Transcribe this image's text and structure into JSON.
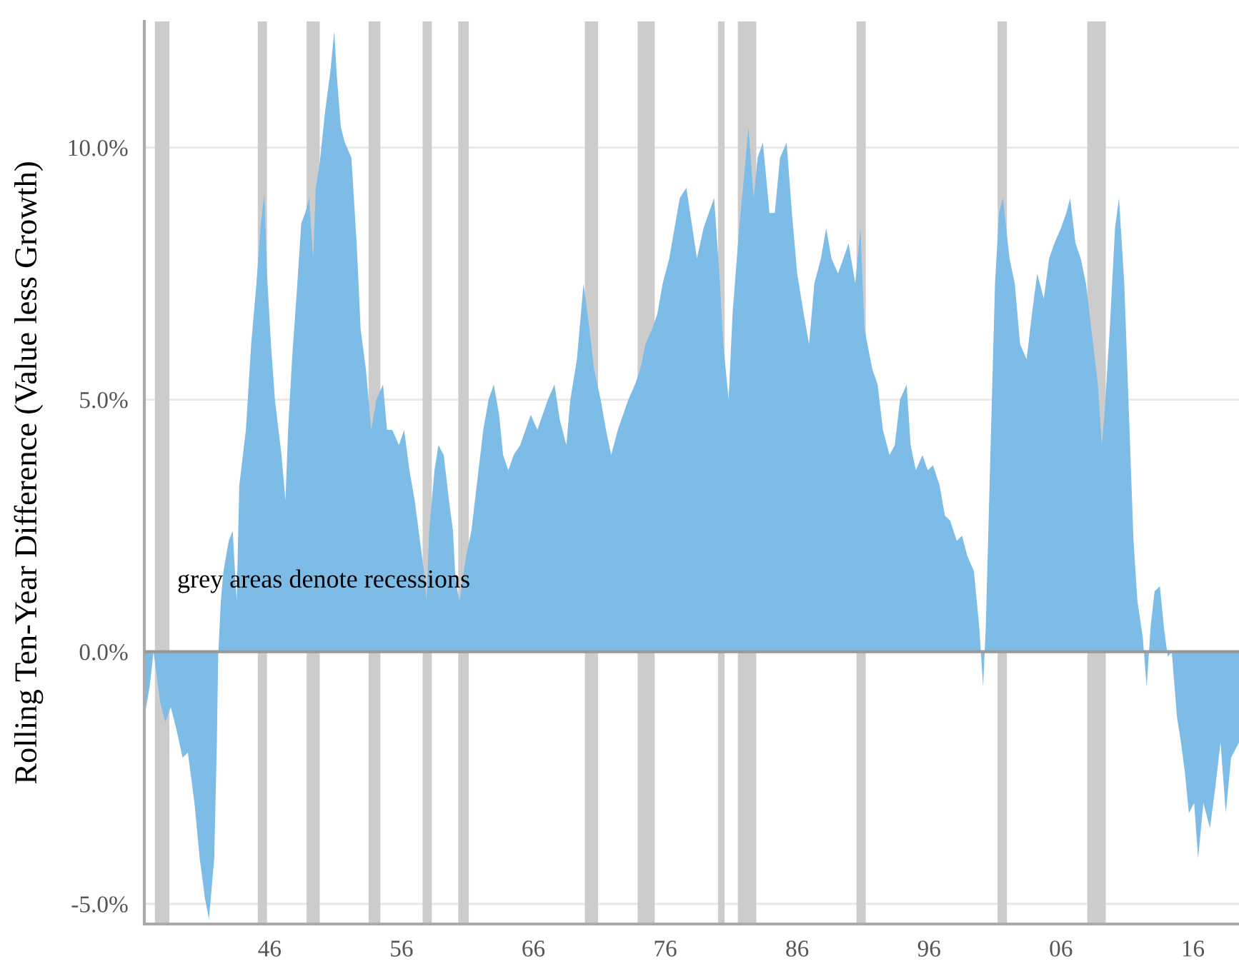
{
  "chart_data": {
    "type": "area",
    "ylabel": "Rolling Ten-Year Difference (Value less Growth)",
    "annotations": [
      "grey areas denote recessions"
    ],
    "xlim": [
      1936.5,
      2019.5
    ],
    "xticks": [
      {
        "value": 1946,
        "label": "46"
      },
      {
        "value": 1956,
        "label": "56"
      },
      {
        "value": 1966,
        "label": "66"
      },
      {
        "value": 1976,
        "label": "76"
      },
      {
        "value": 1986,
        "label": "86"
      },
      {
        "value": 1996,
        "label": "96"
      },
      {
        "value": 2006,
        "label": "06"
      },
      {
        "value": 2016,
        "label": "16"
      }
    ],
    "ylim": [
      -5.4,
      12.5
    ],
    "yticks": [
      {
        "value": -5,
        "label": "-5.0%"
      },
      {
        "value": 0,
        "label": "0.0%"
      },
      {
        "value": 5,
        "label": "5.0%"
      },
      {
        "value": 10,
        "label": "10.0%"
      }
    ],
    "grid": "y",
    "ref_lines": [
      {
        "axis": "y",
        "value": 0,
        "color": "#999999"
      }
    ],
    "bands": [
      {
        "axis": "x",
        "from": 1937.3,
        "to": 1938.4,
        "color": "#cccccc"
      },
      {
        "axis": "x",
        "from": 1945.1,
        "to": 1945.8,
        "color": "#cccccc"
      },
      {
        "axis": "x",
        "from": 1948.8,
        "to": 1949.8,
        "color": "#cccccc"
      },
      {
        "axis": "x",
        "from": 1953.5,
        "to": 1954.4,
        "color": "#cccccc"
      },
      {
        "axis": "x",
        "from": 1957.6,
        "to": 1958.3,
        "color": "#cccccc"
      },
      {
        "axis": "x",
        "from": 1960.3,
        "to": 1961.1,
        "color": "#cccccc"
      },
      {
        "axis": "x",
        "from": 1969.9,
        "to": 1970.9,
        "color": "#cccccc"
      },
      {
        "axis": "x",
        "from": 1973.9,
        "to": 1975.2,
        "color": "#cccccc"
      },
      {
        "axis": "x",
        "from": 1980.0,
        "to": 1980.5,
        "color": "#cccccc"
      },
      {
        "axis": "x",
        "from": 1981.5,
        "to": 1982.9,
        "color": "#cccccc"
      },
      {
        "axis": "x",
        "from": 1990.5,
        "to": 1991.2,
        "color": "#cccccc"
      },
      {
        "axis": "x",
        "from": 2001.2,
        "to": 2001.9,
        "color": "#cccccc"
      },
      {
        "axis": "x",
        "from": 2008.0,
        "to": 2009.4,
        "color": "#cccccc"
      }
    ],
    "series": [
      {
        "color": "#7cbce6",
        "x": [
          1936.5,
          1936.9,
          1937.2,
          1937.7,
          1938.1,
          1938.5,
          1938.9,
          1939.4,
          1939.8,
          1940.3,
          1940.7,
          1941.1,
          1941.4,
          1941.8,
          1942.0,
          1942.1,
          1942.3,
          1942.5,
          1942.9,
          1943.2,
          1943.5,
          1943.7,
          1944.2,
          1944.6,
          1945.0,
          1945.3,
          1945.6,
          1945.8,
          1946.1,
          1946.4,
          1946.9,
          1947.2,
          1947.4,
          1947.7,
          1948.1,
          1948.4,
          1948.7,
          1949.0,
          1949.3,
          1949.5,
          1949.8,
          1950.2,
          1950.6,
          1950.9,
          1951.1,
          1951.4,
          1951.7,
          1952.2,
          1952.6,
          1952.9,
          1953.3,
          1953.7,
          1954.1,
          1954.6,
          1954.9,
          1955.3,
          1955.8,
          1956.2,
          1956.6,
          1957.0,
          1957.4,
          1957.7,
          1957.9,
          1958.1,
          1958.5,
          1958.8,
          1959.2,
          1959.6,
          1959.9,
          1960.1,
          1960.4,
          1960.9,
          1961.3,
          1961.7,
          1962.2,
          1962.6,
          1963.0,
          1963.4,
          1963.7,
          1964.1,
          1964.5,
          1965.0,
          1965.4,
          1965.8,
          1966.3,
          1966.7,
          1967.1,
          1967.6,
          1968.0,
          1968.5,
          1968.8,
          1969.3,
          1969.8,
          1970.2,
          1970.6,
          1971.1,
          1971.5,
          1971.9,
          1972.4,
          1972.8,
          1973.2,
          1973.7,
          1974.1,
          1974.5,
          1975.0,
          1975.4,
          1975.8,
          1976.3,
          1976.7,
          1977.1,
          1977.6,
          1978.0,
          1978.4,
          1978.9,
          1979.3,
          1979.7,
          1980.1,
          1980.4,
          1980.8,
          1981.1,
          1981.6,
          1982.0,
          1982.3,
          1982.7,
          1983.0,
          1983.4,
          1983.9,
          1984.3,
          1984.7,
          1985.2,
          1985.6,
          1986.0,
          1986.5,
          1986.9,
          1987.3,
          1987.8,
          1988.2,
          1988.6,
          1989.1,
          1989.5,
          1989.9,
          1990.4,
          1990.8,
          1991.1,
          1991.7,
          1992.1,
          1992.5,
          1993.0,
          1993.4,
          1993.8,
          1994.3,
          1994.6,
          1995.0,
          1995.5,
          1995.9,
          1996.3,
          1996.8,
          1997.2,
          1997.6,
          1998.1,
          1998.5,
          1998.9,
          1999.4,
          1999.8,
          2000.1,
          2000.3,
          2000.7,
          2001.0,
          2001.3,
          2001.6,
          2002.1,
          2002.5,
          2002.9,
          2003.4,
          2003.8,
          2004.2,
          2004.7,
          2005.1,
          2005.5,
          2006.0,
          2006.4,
          2006.7,
          2007.1,
          2007.5,
          2007.9,
          2008.3,
          2008.8,
          2009.1,
          2009.3,
          2009.7,
          2010.1,
          2010.4,
          2010.8,
          2011.2,
          2011.5,
          2011.8,
          2012.2,
          2012.5,
          2012.8,
          2013.1,
          2013.5,
          2013.8,
          2014.1,
          2014.4,
          2014.8,
          2015.1,
          2015.4,
          2015.7,
          2016.1,
          2016.4,
          2016.8,
          2017.3,
          2017.7,
          2018.1,
          2018.5,
          2018.9,
          2019.5
        ],
        "values": [
          -1.3,
          -0.7,
          0.0,
          -1.0,
          -1.4,
          -1.1,
          -1.5,
          -2.1,
          -2.0,
          -3.0,
          -4.1,
          -4.9,
          -5.3,
          -4.1,
          -1.8,
          -0.1,
          1.0,
          1.6,
          2.2,
          2.4,
          1.0,
          3.3,
          4.4,
          6.1,
          7.3,
          8.4,
          9.1,
          7.5,
          6.1,
          5.0,
          3.9,
          3.0,
          4.4,
          5.8,
          7.3,
          8.5,
          8.7,
          9.0,
          7.8,
          9.2,
          9.7,
          10.7,
          11.5,
          12.3,
          11.4,
          10.4,
          10.1,
          9.8,
          8.1,
          6.4,
          5.6,
          4.4,
          5.0,
          5.3,
          4.4,
          4.4,
          4.1,
          4.4,
          3.6,
          3.0,
          2.2,
          1.6,
          1.0,
          2.4,
          3.6,
          4.1,
          3.9,
          3.0,
          2.4,
          1.4,
          1.0,
          1.9,
          2.4,
          3.3,
          4.4,
          5.0,
          5.3,
          4.7,
          3.9,
          3.6,
          3.9,
          4.1,
          4.4,
          4.7,
          4.4,
          4.7,
          5.0,
          5.3,
          4.6,
          4.1,
          5.0,
          5.8,
          7.3,
          6.5,
          5.6,
          5.0,
          4.4,
          3.9,
          4.4,
          4.7,
          5.0,
          5.3,
          5.6,
          6.1,
          6.4,
          6.7,
          7.3,
          7.8,
          8.4,
          9.0,
          9.2,
          8.5,
          7.8,
          8.4,
          8.7,
          9.0,
          7.5,
          6.1,
          5.0,
          6.7,
          8.4,
          9.5,
          10.4,
          9.0,
          9.8,
          10.1,
          8.7,
          8.7,
          9.8,
          10.1,
          8.7,
          7.5,
          6.7,
          6.1,
          7.3,
          7.8,
          8.4,
          7.8,
          7.5,
          7.8,
          8.1,
          7.3,
          8.4,
          6.4,
          5.6,
          5.3,
          4.4,
          3.9,
          4.1,
          5.0,
          5.3,
          4.1,
          3.6,
          3.9,
          3.6,
          3.7,
          3.3,
          2.7,
          2.6,
          2.2,
          2.3,
          1.9,
          1.6,
          0.5,
          -0.7,
          0.5,
          4.4,
          7.3,
          8.7,
          9.0,
          7.8,
          7.3,
          6.1,
          5.8,
          6.7,
          7.5,
          7.0,
          7.8,
          8.1,
          8.4,
          8.7,
          9.0,
          8.1,
          7.8,
          7.3,
          6.4,
          5.3,
          4.1,
          4.7,
          6.4,
          8.4,
          9.0,
          7.3,
          4.4,
          2.2,
          1.0,
          0.3,
          -0.7,
          0.5,
          1.2,
          1.3,
          0.5,
          -0.1,
          0.0,
          -1.3,
          -1.8,
          -2.4,
          -3.2,
          -3.0,
          -4.1,
          -3.0,
          -3.5,
          -2.7,
          -1.8,
          -3.2,
          -2.1,
          -1.8
        ]
      }
    ]
  }
}
